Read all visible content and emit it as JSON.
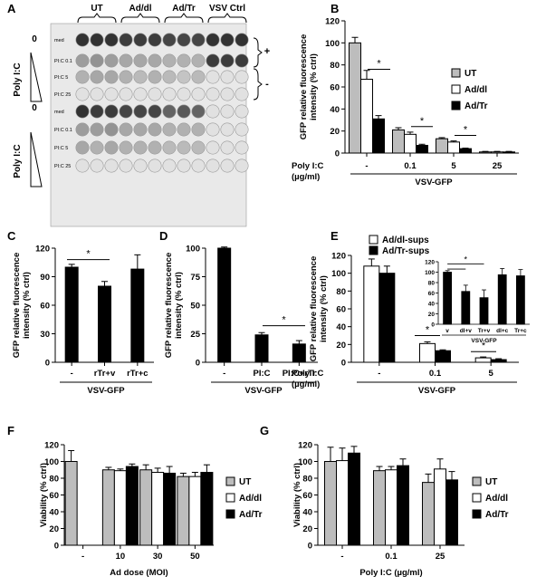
{
  "plate": {
    "panel_letter": "A",
    "col_groups": [
      "UT",
      "Ad/dl",
      "Ad/Tr",
      "VSV Ctrl"
    ],
    "top_zero": "0",
    "bottom_zero": "0",
    "poly_label_top": "Poly I:C",
    "poly_label_bottom": "Poly I:C",
    "row_labels": [
      "med",
      "PI:C 0.1",
      "PI:C 5",
      "PI:C 25",
      "med",
      "PI:C 0.1",
      "PI:C 5",
      "PI:C 25"
    ],
    "plus": "+",
    "minus": "-",
    "well_intensity": [
      [
        0.95,
        0.95,
        0.95,
        0.9,
        0.9,
        0.9,
        0.85,
        0.85,
        0.85,
        0.95,
        0.95,
        0.95
      ],
      [
        0.4,
        0.45,
        0.4,
        0.35,
        0.35,
        0.35,
        0.3,
        0.3,
        0.3,
        0.9,
        0.9,
        0.9
      ],
      [
        0.3,
        0.35,
        0.35,
        0.3,
        0.25,
        0.3,
        0.25,
        0.2,
        0.25,
        0.05,
        0.05,
        0.05
      ],
      [
        0.05,
        0.05,
        0.05,
        0.05,
        0.05,
        0.05,
        0.05,
        0.05,
        0.05,
        0.05,
        0.05,
        0.05
      ],
      [
        0.95,
        0.9,
        0.9,
        0.85,
        0.85,
        0.85,
        0.7,
        0.75,
        0.7,
        0.05,
        0.05,
        0.05
      ],
      [
        0.4,
        0.4,
        0.45,
        0.35,
        0.35,
        0.35,
        0.3,
        0.3,
        0.3,
        0.05,
        0.05,
        0.05
      ],
      [
        0.35,
        0.3,
        0.35,
        0.3,
        0.3,
        0.3,
        0.25,
        0.25,
        0.25,
        0.05,
        0.05,
        0.05
      ],
      [
        0.05,
        0.05,
        0.05,
        0.05,
        0.05,
        0.05,
        0.05,
        0.05,
        0.05,
        0.05,
        0.05,
        0.05
      ]
    ]
  },
  "colors": {
    "ut": "#bdbdbd",
    "addl": "#ffffff",
    "adtr": "#000000",
    "axis": "#000000"
  },
  "chart_data": [
    {
      "panel": "B",
      "type": "bar",
      "ylabel": "GFP relative fluorescence intensity  (% ctrl)",
      "ylim": [
        0,
        120
      ],
      "yticks": [
        0,
        20,
        40,
        60,
        80,
        100,
        120
      ],
      "categories": [
        "-",
        "0.1",
        "5",
        "25"
      ],
      "row_label": "Poly I:C\n(µg/ml)",
      "group_label": "VSV-GFP",
      "legend": "right",
      "series": [
        {
          "name": "UT",
          "color": "#bdbdbd",
          "values": [
            100,
            21,
            13,
            1
          ],
          "errors": [
            5,
            2,
            1,
            0.5
          ]
        },
        {
          "name": "Ad/dl",
          "color": "#ffffff",
          "values": [
            67,
            17,
            10,
            1
          ],
          "errors": [
            8,
            2,
            1,
            0.5
          ]
        },
        {
          "name": "Ad/Tr",
          "color": "#000000",
          "values": [
            31,
            7,
            4,
            1
          ],
          "errors": [
            3,
            1,
            0.5,
            0.5
          ]
        }
      ],
      "significance": [
        "*",
        "*",
        "*"
      ]
    },
    {
      "panel": "C",
      "type": "bar",
      "ylabel": "GFP relative fluorescence intensity (% ctrl)",
      "ylim": [
        0,
        120
      ],
      "yticks": [
        0,
        30,
        60,
        90,
        120
      ],
      "categories": [
        "-",
        "rTr+v",
        "rTr+c"
      ],
      "group_label": "VSV-GFP",
      "series": [
        {
          "color": "#000000",
          "values": [
            100,
            80,
            98
          ],
          "errors": [
            3,
            5,
            15
          ]
        }
      ],
      "significance": [
        "*"
      ]
    },
    {
      "panel": "D",
      "type": "bar",
      "ylabel": "GFP relative fluorescence intensity (% ctrl)",
      "ylim": [
        0,
        100
      ],
      "yticks": [
        0,
        25,
        50,
        75,
        100
      ],
      "categories": [
        "-",
        "PI:C",
        "PI:C+rTr"
      ],
      "group_label": "VSV-GFP",
      "series": [
        {
          "color": "#000000",
          "values": [
            100,
            24,
            16
          ],
          "errors": [
            1,
            2,
            3
          ]
        }
      ],
      "significance": [
        "*"
      ]
    },
    {
      "panel": "E",
      "type": "bar",
      "ylabel": "GFP relative fluorescence intensity (% ctrl)",
      "ylim": [
        0,
        120
      ],
      "yticks": [
        0,
        20,
        40,
        60,
        80,
        100,
        120
      ],
      "categories": [
        "-",
        "0.1",
        "5"
      ],
      "row_label": "Poly I:C\n(µg/ml)",
      "group_label": "VSV-GFP",
      "legend": "top",
      "series": [
        {
          "name": "Ad/dl-sups",
          "color": "#ffffff",
          "values": [
            108,
            21,
            5
          ],
          "errors": [
            8,
            2,
            1
          ]
        },
        {
          "name": "Ad/Tr-sups",
          "color": "#000000",
          "values": [
            100,
            13,
            3
          ],
          "errors": [
            8,
            1,
            1
          ]
        }
      ],
      "significance": [
        "*",
        "*"
      ],
      "inset": {
        "ylim": [
          0,
          120
        ],
        "yticks": [
          0,
          20,
          40,
          60,
          80,
          100,
          120
        ],
        "categories": [
          "v",
          "dl+v",
          "Tr+v",
          "dl+c",
          "Tr+c"
        ],
        "group_label": "VSV-GFP",
        "values": [
          100,
          63,
          51,
          95,
          93
        ],
        "errors": [
          3,
          12,
          15,
          12,
          12
        ],
        "significance": [
          "*"
        ]
      }
    },
    {
      "panel": "F",
      "type": "bar",
      "ylabel": "Viability (% ctrl)",
      "ylim": [
        0,
        120
      ],
      "yticks": [
        0,
        20,
        40,
        60,
        80,
        100,
        120
      ],
      "categories": [
        "-",
        "10",
        "30",
        "50"
      ],
      "xlabel": "Ad dose (MOI)",
      "legend": "right",
      "series": [
        {
          "name": "UT",
          "color": "#bdbdbd",
          "values": [
            100,
            90,
            90,
            82
          ],
          "errors": [
            13,
            3,
            6,
            4
          ]
        },
        {
          "name": "Ad/dl",
          "color": "#ffffff",
          "values": [
            null,
            89,
            87,
            82
          ],
          "errors": [
            null,
            2,
            5,
            5
          ]
        },
        {
          "name": "Ad/Tr",
          "color": "#000000",
          "values": [
            null,
            94,
            86,
            87
          ],
          "errors": [
            null,
            3,
            8,
            9
          ]
        }
      ]
    },
    {
      "panel": "G",
      "type": "bar",
      "ylabel": "Viability (% ctrl)",
      "ylim": [
        0,
        120
      ],
      "yticks": [
        0,
        20,
        40,
        60,
        80,
        100,
        120
      ],
      "categories": [
        "-",
        "0.1",
        "25"
      ],
      "xlabel": "Poly I:C (µg/ml)",
      "legend": "right",
      "series": [
        {
          "name": "UT",
          "color": "#bdbdbd",
          "values": [
            100,
            89,
            75
          ],
          "errors": [
            17,
            5,
            10
          ]
        },
        {
          "name": "Ad/dl",
          "color": "#ffffff",
          "values": [
            101,
            90,
            91
          ],
          "errors": [
            15,
            4,
            12
          ]
        },
        {
          "name": "Ad/Tr",
          "color": "#000000",
          "values": [
            110,
            95,
            78
          ],
          "errors": [
            8,
            8,
            10
          ]
        }
      ]
    }
  ]
}
